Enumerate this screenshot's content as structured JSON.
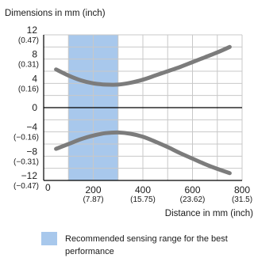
{
  "chart_data": {
    "type": "line",
    "title": "Dimensions in mm (inch)",
    "xlabel": "Distance in mm (inch)",
    "ylabel": "",
    "xlim": [
      0,
      800
    ],
    "ylim": [
      -12,
      12
    ],
    "x_ticks": [
      {
        "value": 0,
        "label": "0",
        "sub": ""
      },
      {
        "value": 200,
        "label": "200",
        "sub": "(7.87)"
      },
      {
        "value": 400,
        "label": "400",
        "sub": "(15.75)"
      },
      {
        "value": 600,
        "label": "600",
        "sub": "(23.62)"
      },
      {
        "value": 800,
        "label": "800",
        "sub": "(31.5)"
      }
    ],
    "y_ticks": [
      {
        "value": 12,
        "label": "12",
        "sub": "(0.47)"
      },
      {
        "value": 8,
        "label": "8",
        "sub": "(0.31)"
      },
      {
        "value": 4,
        "label": "4",
        "sub": "(0.16)"
      },
      {
        "value": 0,
        "label": "0",
        "sub": ""
      },
      {
        "value": -4,
        "label": "−4",
        "sub": "(−0.16)"
      },
      {
        "value": -8,
        "label": "−8",
        "sub": "(−0.31)"
      },
      {
        "value": -12,
        "label": "−12",
        "sub": "(−0.47)"
      }
    ],
    "highlight_band": {
      "x_from": 100,
      "x_to": 300,
      "color": "#a8c8ec",
      "label": "Recommended sensing range for the best performance"
    },
    "series": [
      {
        "x": [
          50,
          100,
          150,
          200,
          250,
          300,
          350,
          400,
          450,
          500,
          550,
          600,
          650,
          700,
          750
        ],
        "values": [
          6.3,
          5.3,
          4.5,
          4.0,
          3.8,
          3.8,
          4.1,
          4.6,
          5.3,
          6.0,
          6.7,
          7.5,
          8.3,
          9.1,
          10.0
        ]
      },
      {
        "x": [
          50,
          100,
          150,
          200,
          250,
          300,
          350,
          400,
          450,
          500,
          550,
          600,
          650,
          700,
          750
        ],
        "values": [
          -6.8,
          -6.0,
          -5.2,
          -4.6,
          -4.2,
          -4.1,
          -4.3,
          -4.8,
          -5.6,
          -6.5,
          -7.5,
          -8.4,
          -9.3,
          -10.1,
          -10.8
        ]
      }
    ],
    "grid": true,
    "legend": "bottom",
    "colors": {
      "curve": "#7c7c7c",
      "band": "#a8c8ec",
      "grid": "#c8c8c8",
      "axis": "#000000"
    }
  }
}
